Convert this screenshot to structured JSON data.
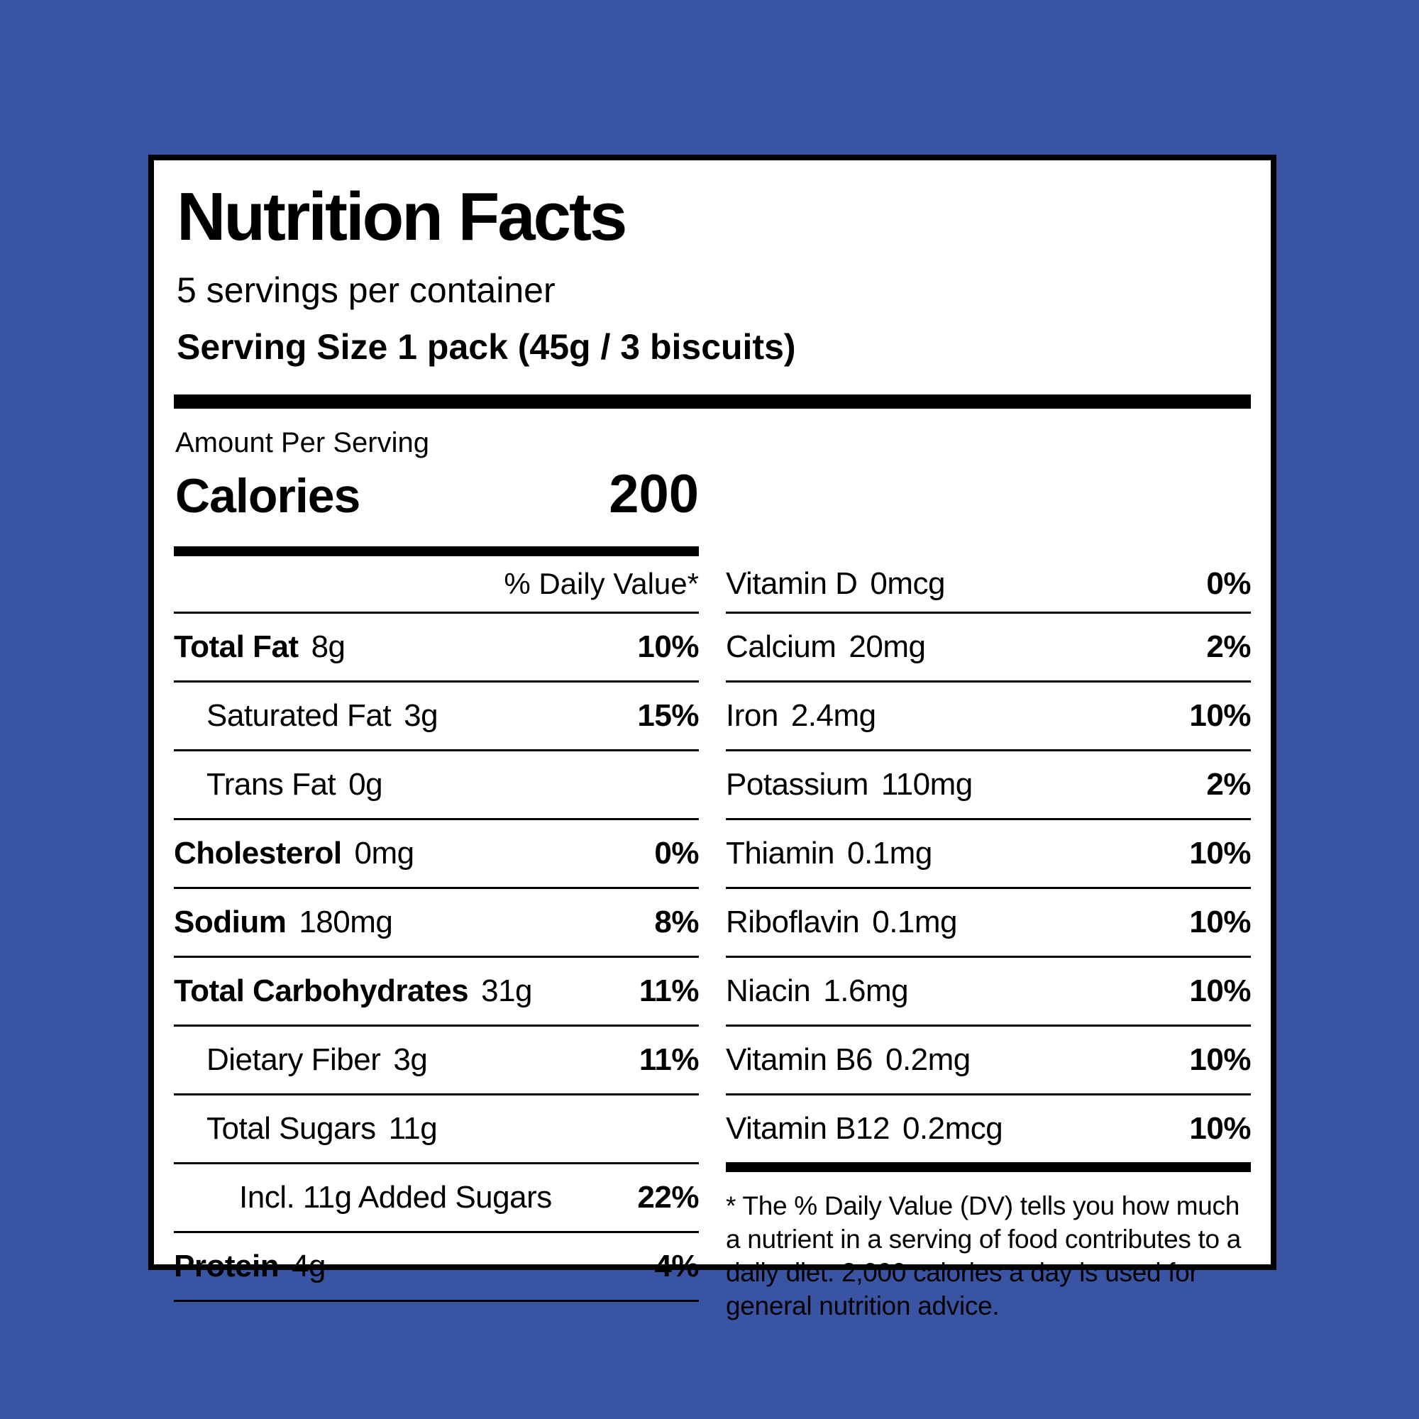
{
  "colors": {
    "background": "#3A54A4",
    "panel": "#FFFFFF",
    "text": "#000000"
  },
  "label": {
    "title": "Nutrition Facts",
    "servings_per_container": "5 servings per container",
    "serving_size": "Serving Size 1 pack (45g / 3 biscuits)",
    "amount_per_serving": "Amount Per Serving",
    "calories_label": "Calories",
    "calories_value": "200",
    "daily_value_header": "% Daily Value*",
    "left_rows": [
      {
        "label": "Total Fat",
        "value": "8g",
        "percent": "10%"
      },
      {
        "label": "Saturated Fat",
        "value": "3g",
        "percent": "15%"
      },
      {
        "label": "Trans Fat",
        "value": "0g",
        "percent": ""
      },
      {
        "label": "Cholesterol",
        "value": "0mg",
        "percent": "0%"
      },
      {
        "label": "Sodium",
        "value": "180mg",
        "percent": "8%"
      },
      {
        "label": "Total Carbohydrates",
        "value": "31g",
        "percent": "11%"
      },
      {
        "label": "Dietary Fiber",
        "value": "3g",
        "percent": "11%"
      },
      {
        "label": "Total Sugars",
        "value": "11g",
        "percent": ""
      },
      {
        "label": "Incl. 11g Added Sugars",
        "value": "",
        "percent": "22%"
      },
      {
        "label": "Protein",
        "value": "4g",
        "percent": "4%"
      }
    ],
    "right_rows": [
      {
        "label": "Vitamin D",
        "value": "0mcg",
        "percent": "0%"
      },
      {
        "label": "Calcium",
        "value": "20mg",
        "percent": "2%"
      },
      {
        "label": "Iron",
        "value": "2.4mg",
        "percent": "10%"
      },
      {
        "label": "Potassium",
        "value": "110mg",
        "percent": "2%"
      },
      {
        "label": "Thiamin",
        "value": "0.1mg",
        "percent": "10%"
      },
      {
        "label": "Riboflavin",
        "value": "0.1mg",
        "percent": "10%"
      },
      {
        "label": "Niacin",
        "value": "1.6mg",
        "percent": "10%"
      },
      {
        "label": "Vitamin B6",
        "value": "0.2mg",
        "percent": "10%"
      },
      {
        "label": "Vitamin B12",
        "value": "0.2mcg",
        "percent": "10%"
      }
    ],
    "footnote": "* The % Daily Value (DV) tells you how much a nutrient in a serving of food contributes to a daily diet. 2,000 calories a day is used for general nutrition advice."
  }
}
